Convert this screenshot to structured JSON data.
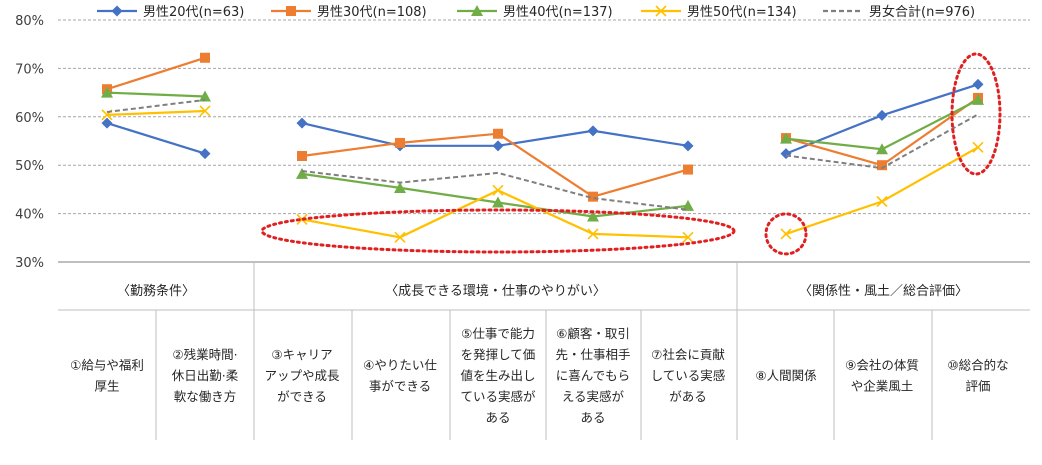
{
  "chart_data": {
    "type": "line",
    "ylim": [
      30,
      80
    ],
    "yticks": [
      30,
      40,
      50,
      60,
      70,
      80
    ],
    "ytick_labels": [
      "30%",
      "40%",
      "50%",
      "60%",
      "70%",
      "80%"
    ],
    "grid": true,
    "legend_position": "top",
    "groups": [
      {
        "title": "〈勤務条件〉",
        "categories": [
          0,
          1
        ]
      },
      {
        "title": "〈成長できる環境・仕事のやりがい〉",
        "categories": [
          2,
          3,
          4,
          5,
          6
        ]
      },
      {
        "title": "〈関係性・風土／総合評価〉",
        "categories": [
          7,
          8,
          9
        ]
      }
    ],
    "categories": [
      {
        "label": "①給与や福利厚生",
        "lines": [
          "①給与や福利",
          "厚生"
        ]
      },
      {
        "label": "②残業時間·休日出勤·柔軟な働き方",
        "lines": [
          "②残業時間·",
          "休日出勤·柔",
          "軟な働き方"
        ]
      },
      {
        "label": "③キャリアアップや成長ができる",
        "lines": [
          "③キャリア",
          "アップや成長",
          "ができる"
        ]
      },
      {
        "label": "④やりたい仕事ができる",
        "lines": [
          "④やりたい仕",
          "事ができる"
        ]
      },
      {
        "label": "⑤仕事で能力を発揮して価値を生み出している実感がある",
        "lines": [
          "⑤仕事で能力",
          "を発揮して価",
          "値を生み出し",
          "ている実感が",
          "ある"
        ]
      },
      {
        "label": "⑥顧客・取引先・仕事相手に喜んでもらえる実感がある",
        "lines": [
          "⑥顧客・取引",
          "先・仕事相手",
          "に喜んでもら",
          "える実感が",
          "ある"
        ]
      },
      {
        "label": "⑦社会に貢献している実感がある",
        "lines": [
          "⑦社会に貢献",
          "している実感",
          "がある"
        ]
      },
      {
        "label": "⑧人間関係",
        "lines": [
          "⑧人間関係"
        ]
      },
      {
        "label": "⑨会社の体質や企業風土",
        "lines": [
          "⑨会社の体質",
          "や企業風土"
        ]
      },
      {
        "label": "⑩総合的な評価",
        "lines": [
          "⑩総合的な",
          "評価"
        ]
      }
    ],
    "series": [
      {
        "name": "男性20代(n=63)",
        "color": "#4472c4",
        "marker": "diamond",
        "dashed": false,
        "values": [
          58.7,
          52.4,
          58.7,
          54.0,
          54.0,
          57.1,
          54.0,
          52.4,
          60.3,
          66.7
        ]
      },
      {
        "name": "男性30代(n=108)",
        "color": "#ed7d31",
        "marker": "square",
        "dashed": false,
        "values": [
          65.7,
          72.2,
          51.9,
          54.6,
          56.5,
          43.5,
          49.1,
          55.6,
          50.0,
          63.9
        ]
      },
      {
        "name": "男性40代(n=137)",
        "color": "#70ad47",
        "marker": "triangle",
        "dashed": false,
        "values": [
          65.0,
          64.2,
          48.2,
          45.3,
          42.3,
          39.4,
          41.6,
          55.5,
          53.3,
          63.5
        ]
      },
      {
        "name": "男性50代(n=134)",
        "color": "#ffc000",
        "marker": "x",
        "dashed": false,
        "values": [
          60.4,
          61.2,
          38.8,
          35.1,
          44.8,
          35.8,
          35.1,
          35.8,
          42.5,
          53.7
        ]
      },
      {
        "name": "男女合計(n=976)",
        "color": "#7f7f7f",
        "marker": "none",
        "dashed": true,
        "values": [
          61.0,
          63.5,
          48.8,
          46.4,
          48.4,
          43.2,
          40.8,
          52.0,
          49.4,
          60.5
        ]
      }
    ],
    "annotations": [
      {
        "shape": "ellipse",
        "color": "#e02020",
        "note": "highlight-50s-growth",
        "span": [
          2,
          6
        ]
      },
      {
        "shape": "circle",
        "color": "#e02020",
        "note": "highlight-50s-relations",
        "span": [
          7,
          7
        ]
      },
      {
        "shape": "ellipse",
        "color": "#e02020",
        "note": "highlight-overall",
        "span": [
          9,
          9
        ]
      }
    ]
  }
}
